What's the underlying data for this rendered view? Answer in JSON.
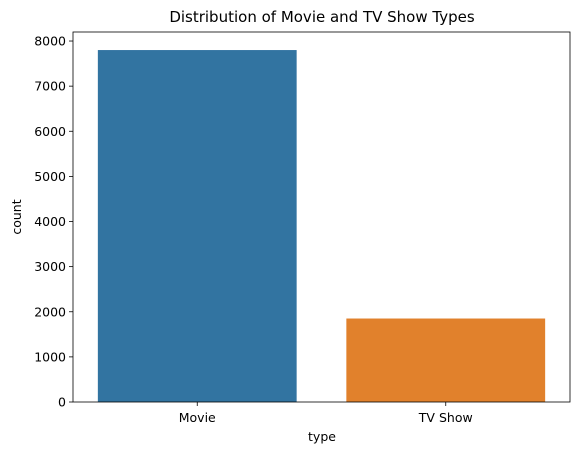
{
  "chart_data": {
    "type": "bar",
    "title": "Distribution of Movie and TV Show Types",
    "xlabel": "type",
    "ylabel": "count",
    "categories": [
      "Movie",
      "TV Show"
    ],
    "values": [
      7800,
      1850
    ],
    "ylim": [
      0,
      8200
    ],
    "yticks": [
      0,
      1000,
      2000,
      3000,
      4000,
      5000,
      6000,
      7000,
      8000
    ],
    "colors": [
      "#3274a1",
      "#e1812c"
    ],
    "grid": false,
    "legend": "none"
  }
}
